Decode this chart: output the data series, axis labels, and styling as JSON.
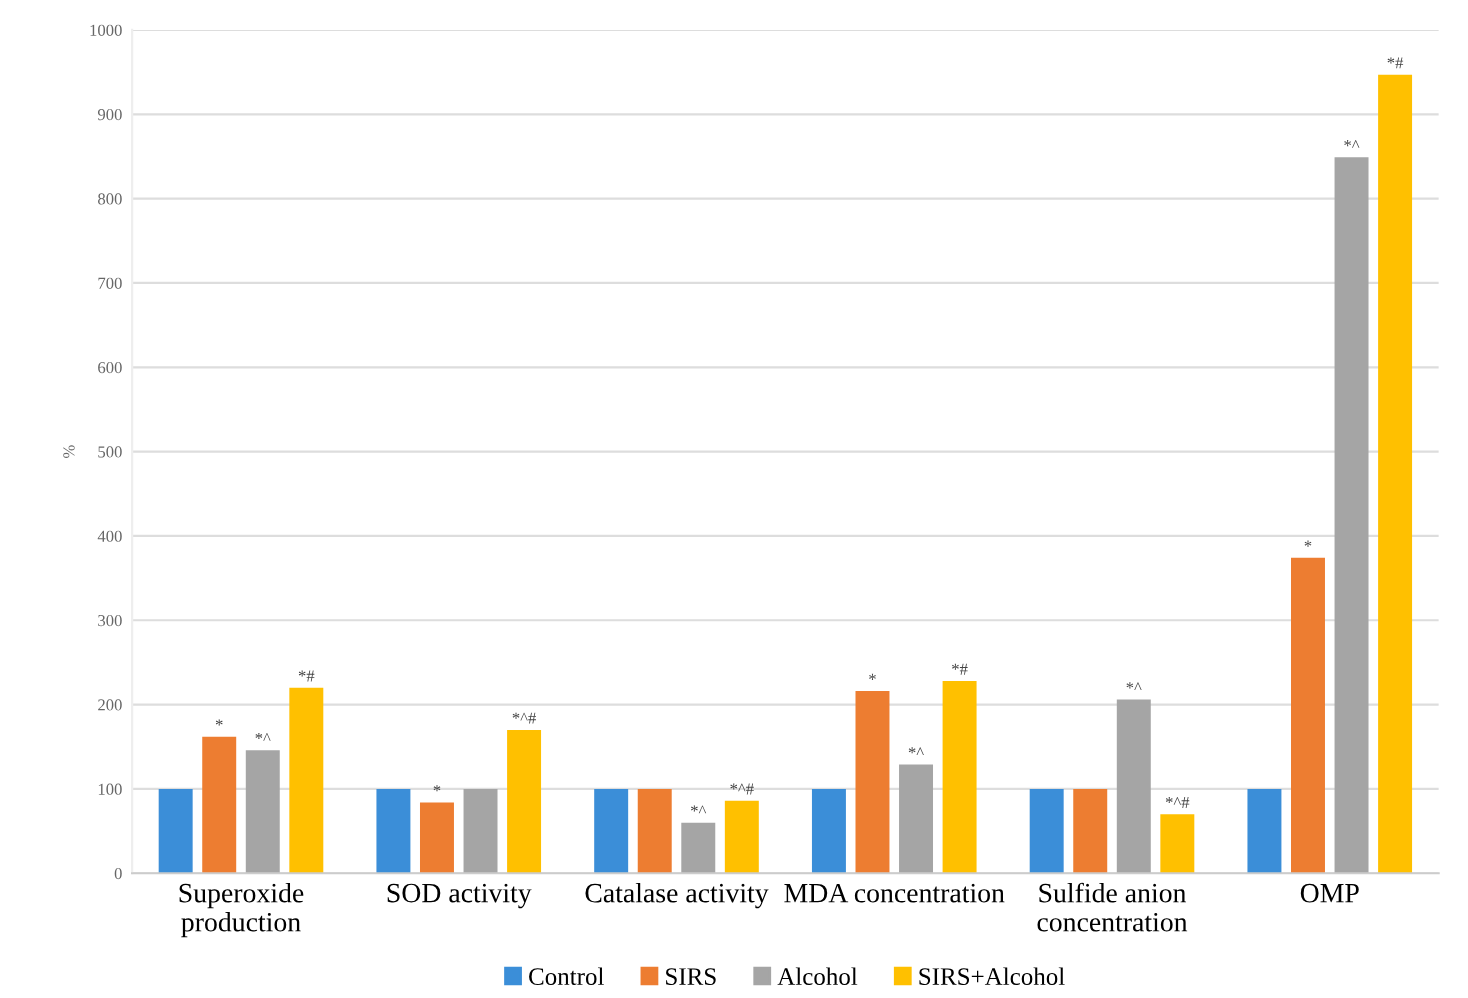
{
  "chart_data": {
    "type": "bar",
    "ylabel": "%",
    "categories": [
      "Superoxide\nproduction",
      "SOD activity",
      "Catalase activity",
      "MDA concentration",
      "Sulfide anion\nconcentration",
      "OMP"
    ],
    "series": [
      {
        "name": "Control",
        "color": "#3b8ed8",
        "values": [
          100,
          100,
          100,
          100,
          100,
          100
        ]
      },
      {
        "name": "SIRS",
        "color": "#ed7d31",
        "values": [
          162,
          84,
          100,
          216,
          100,
          374
        ],
        "value_labels": [
          "*",
          "*",
          null,
          "*",
          null,
          "*"
        ]
      },
      {
        "name": "Alcohol",
        "color": "#a5a5a5",
        "values": [
          146,
          100,
          60,
          129,
          206,
          849
        ],
        "value_labels": [
          "*^",
          null,
          "*^",
          "*^",
          "*^",
          "*^"
        ]
      },
      {
        "name": "SIRS+Alcohol",
        "color": "#ffc000",
        "values": [
          220,
          170,
          86,
          228,
          70,
          947
        ],
        "value_labels": [
          "*#",
          "*^#",
          "*^#",
          "*#",
          "*^#",
          "*#"
        ]
      }
    ],
    "ylim": [
      0,
      1000
    ],
    "yticks": [
      0,
      100,
      200,
      300,
      400,
      500,
      600,
      700,
      800,
      900,
      1000
    ],
    "grid": "y",
    "legend": "bottom"
  }
}
